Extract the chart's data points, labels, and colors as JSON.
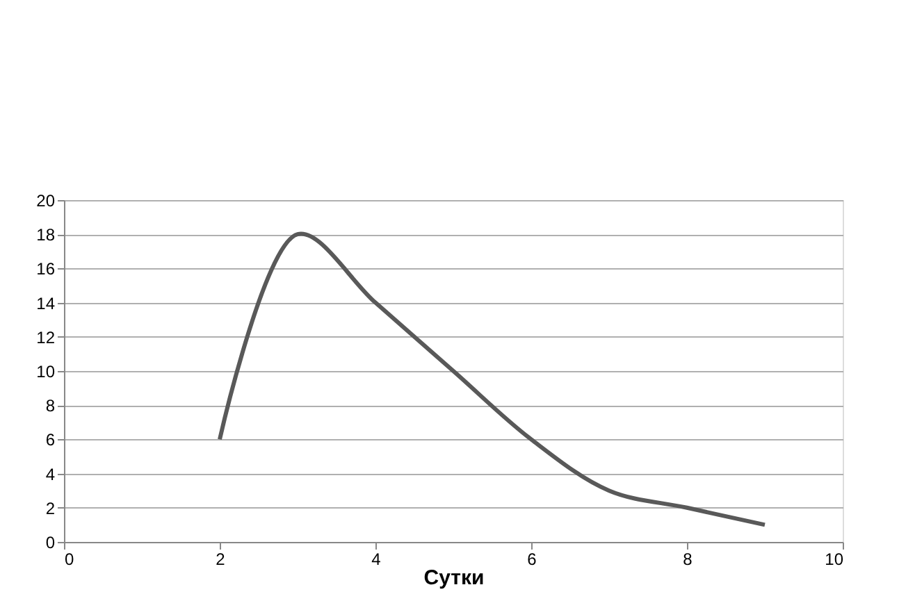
{
  "chart_data": {
    "type": "line",
    "xlabel": "Сутки",
    "series": [
      {
        "color": "#595959",
        "x": [
          2,
          3,
          4,
          5,
          6,
          7,
          8,
          9
        ],
        "values": [
          6,
          18,
          14,
          10,
          6,
          3,
          2,
          1
        ]
      }
    ],
    "xlim": [
      0,
      10
    ],
    "xticks": [
      0,
      2,
      4,
      6,
      8,
      10
    ],
    "ylim": [
      0,
      20
    ],
    "yticks": [
      0,
      2,
      4,
      6,
      8,
      10,
      12,
      14,
      16,
      18,
      20
    ],
    "grid": "y",
    "marker": "none",
    "line_style": "solid"
  }
}
